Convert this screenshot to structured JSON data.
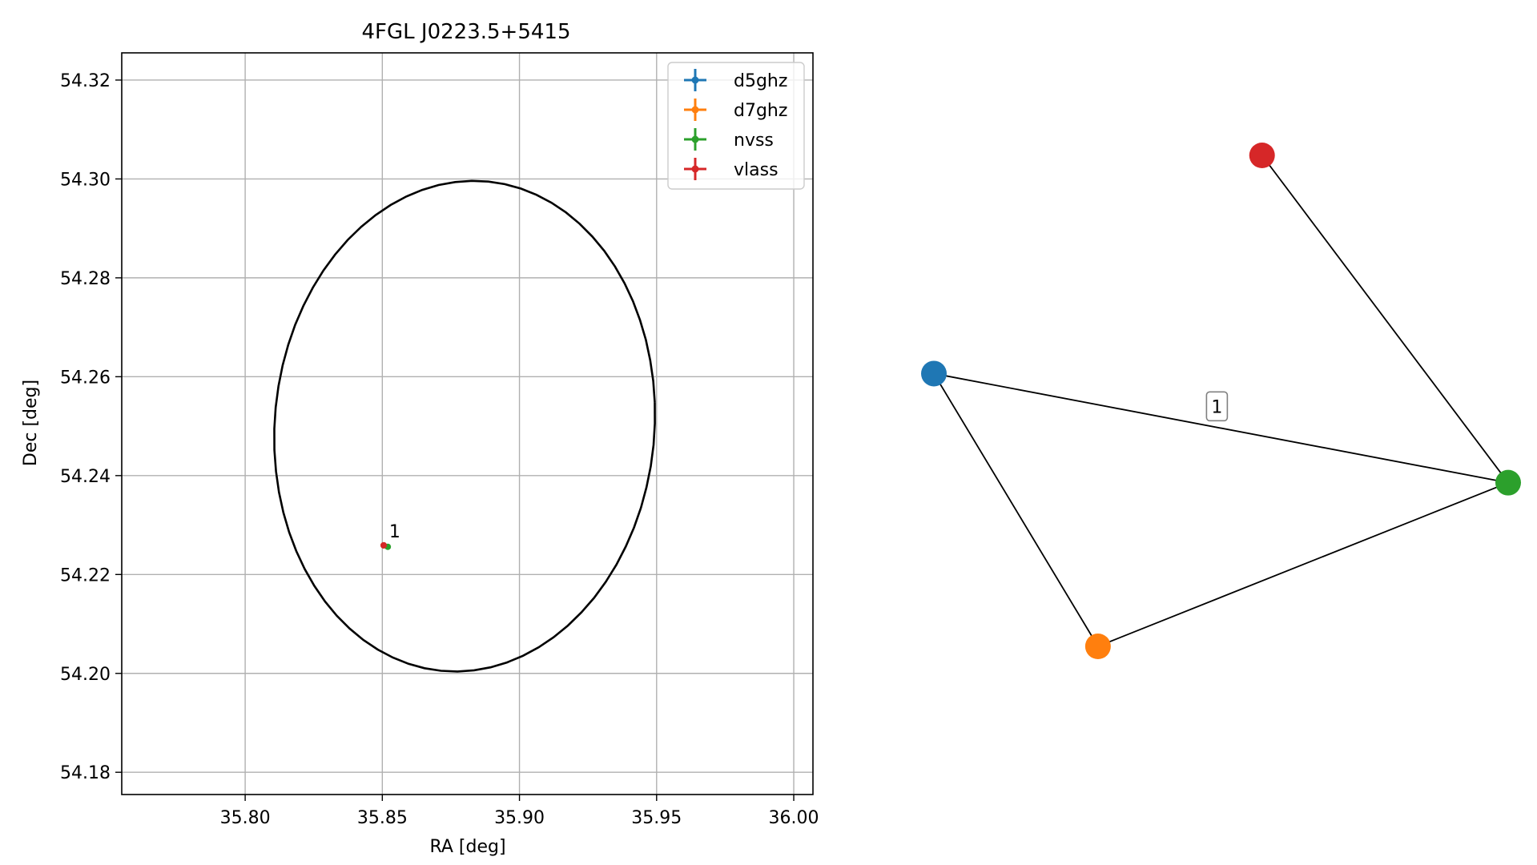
{
  "chart_data": [
    {
      "type": "scatter",
      "title": "4FGL J0223.5+5415",
      "xlabel": "RA [deg]",
      "ylabel": "Dec [deg]",
      "xlim": [
        35.755,
        36.007
      ],
      "ylim": [
        54.1755,
        54.3255
      ],
      "xticks": [
        35.8,
        35.85,
        35.9,
        35.95,
        36.0
      ],
      "xtick_labels": [
        "35.80",
        "35.85",
        "35.90",
        "35.95",
        "36.00"
      ],
      "yticks": [
        54.18,
        54.2,
        54.22,
        54.24,
        54.26,
        54.28,
        54.3,
        54.32
      ],
      "ytick_labels": [
        "54.18",
        "54.20",
        "54.22",
        "54.24",
        "54.26",
        "54.28",
        "54.30",
        "54.32"
      ],
      "grid": true,
      "legend_position": "top-right",
      "series": [
        {
          "name": "d5ghz",
          "color": "#1f77b4",
          "points": [
            {
              "x": 35.8505,
              "y": 54.2259
            }
          ]
        },
        {
          "name": "d7ghz",
          "color": "#ff7f0e",
          "points": [
            {
              "x": 35.8505,
              "y": 54.2259
            }
          ]
        },
        {
          "name": "nvss",
          "color": "#2ca02c",
          "points": [
            {
              "x": 35.852,
              "y": 54.2256
            }
          ]
        },
        {
          "name": "vlass",
          "color": "#d62728",
          "points": [
            {
              "x": 35.8505,
              "y": 54.2259
            }
          ]
        }
      ],
      "ellipse": {
        "center": {
          "x": 35.88,
          "y": 54.25
        },
        "semi_axis_ra": 0.0695,
        "semi_axis_dec": 0.0495,
        "rotation_deg": 4,
        "color": "#000000"
      },
      "annotations": [
        {
          "text": "1",
          "x": 35.8525,
          "y": 54.2275
        }
      ]
    },
    {
      "type": "network",
      "nodes": [
        {
          "id": "d5ghz",
          "color": "#1f77b4",
          "pos": [
            -0.6,
            0.25
          ]
        },
        {
          "id": "d7ghz",
          "color": "#ff7f0e",
          "pos": [
            -0.2,
            -0.5
          ]
        },
        {
          "id": "nvss",
          "color": "#2ca02c",
          "pos": [
            0.8,
            -0.05
          ]
        },
        {
          "id": "vlass",
          "color": "#d62728",
          "pos": [
            0.2,
            0.85
          ]
        }
      ],
      "edges": [
        {
          "source": "d5ghz",
          "target": "nvss"
        },
        {
          "source": "d5ghz",
          "target": "d7ghz"
        },
        {
          "source": "d7ghz",
          "target": "nvss"
        },
        {
          "source": "vlass",
          "target": "nvss"
        }
      ],
      "edge_labels": [
        {
          "text": "1",
          "pos": [
            0.09,
            0.16
          ]
        }
      ]
    }
  ]
}
